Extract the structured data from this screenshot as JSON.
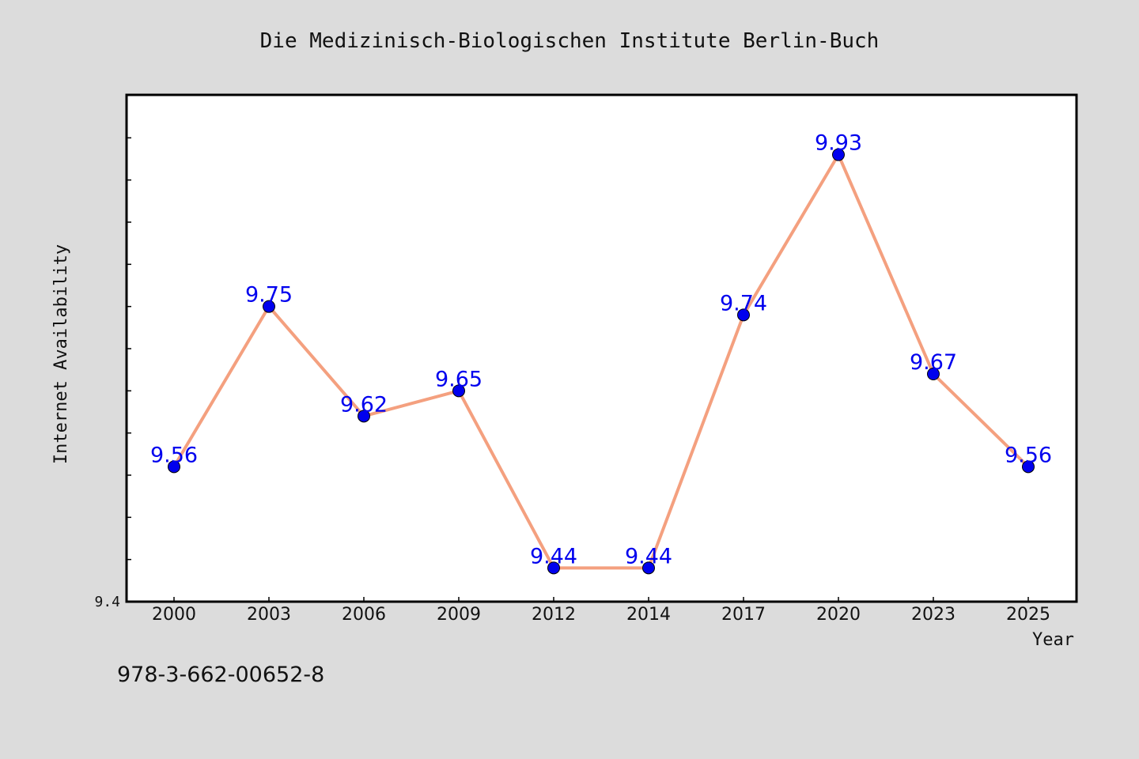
{
  "chart_data": {
    "type": "line",
    "title": "Die Medizinisch-Biologischen Institute Berlin-Buch",
    "xlabel": "Year",
    "ylabel": "Internet Availability",
    "categories": [
      "2000",
      "2003",
      "2006",
      "2009",
      "2012",
      "2014",
      "2017",
      "2020",
      "2023",
      "2025"
    ],
    "series": [
      {
        "values": [
          9.56,
          9.75,
          9.62,
          9.65,
          9.44,
          9.44,
          9.74,
          9.93,
          9.67,
          9.56
        ],
        "line_color": "#f4a07f",
        "marker_color": "#0000ee"
      }
    ],
    "ylim": [
      9.4,
      10.0
    ],
    "y_tick_labels": [
      "9.4"
    ],
    "grid": false,
    "data_labels": true,
    "footer": "978-3-662-00652-8"
  },
  "colors": {
    "background": "#dcdcdc",
    "plot_background": "#ffffff",
    "line": "#f4a07f",
    "marker": "#0000ee",
    "data_label": "#0000ee"
  }
}
